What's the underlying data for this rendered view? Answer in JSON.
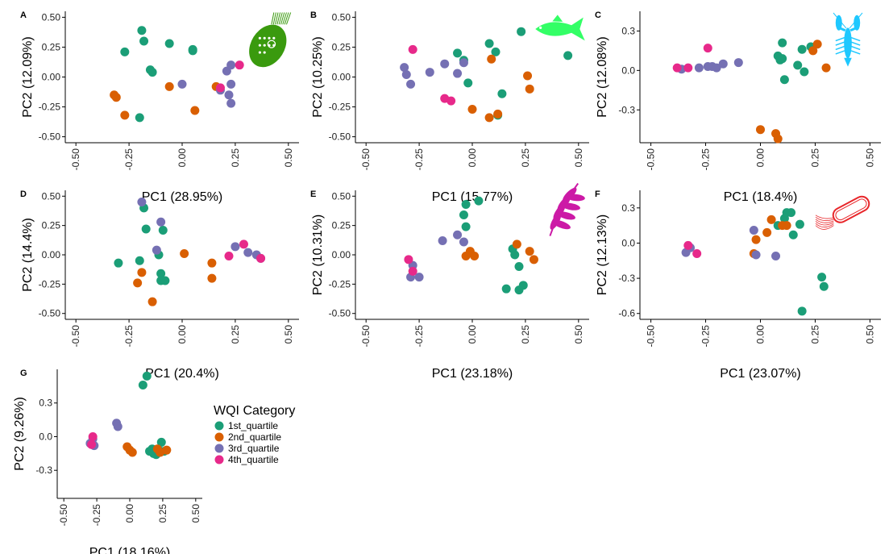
{
  "colors": {
    "1st_quartile": "#1b9e77",
    "2nd_quartile": "#d95f02",
    "3rd_quartile": "#7570b3",
    "4th_quartile": "#e7298a"
  },
  "legend": {
    "title": "WQI Category",
    "items": [
      {
        "key": "1st_quartile",
        "label": "1st_quartile"
      },
      {
        "key": "2nd_quartile",
        "label": "2nd_quartile"
      },
      {
        "key": "3rd_quartile",
        "label": "3rd_quartile"
      },
      {
        "key": "4th_quartile",
        "label": "4th_quartile"
      }
    ]
  },
  "chart_data": [
    {
      "type": "scatter",
      "panel": "A",
      "xlabel": "PC1 (28.95%)",
      "ylabel": "PC2 (12.09%)",
      "xlim": [
        -0.55,
        0.55
      ],
      "ylim": [
        -0.55,
        0.55
      ],
      "xticks": [
        -0.5,
        -0.25,
        0.0,
        0.25,
        0.5
      ],
      "xtick_labels": [
        "-0.50",
        "-0.25",
        "0.00",
        "0.25",
        "0.50"
      ],
      "yticks": [
        -0.5,
        -0.25,
        0.0,
        0.25,
        0.5
      ],
      "ytick_labels": [
        "-0.50",
        "-0.25",
        "0.00",
        "0.25",
        "0.50"
      ],
      "icon": "ciliate-icon",
      "icon_color": "#3a9a0e",
      "series": [
        {
          "name": "1st_quartile",
          "points": [
            [
              -0.27,
              0.21
            ],
            [
              -0.19,
              0.39
            ],
            [
              -0.18,
              0.3
            ],
            [
              -0.15,
              0.06
            ],
            [
              -0.14,
              0.04
            ],
            [
              -0.06,
              0.28
            ],
            [
              0.05,
              0.23
            ],
            [
              0.05,
              0.22
            ],
            [
              -0.2,
              -0.34
            ]
          ]
        },
        {
          "name": "2nd_quartile",
          "points": [
            [
              -0.32,
              -0.15
            ],
            [
              -0.31,
              -0.17
            ],
            [
              -0.27,
              -0.32
            ],
            [
              -0.06,
              -0.08
            ],
            [
              0.06,
              -0.28
            ],
            [
              0.16,
              -0.08
            ]
          ]
        },
        {
          "name": "3rd_quartile",
          "points": [
            [
              0.0,
              -0.06
            ],
            [
              0.21,
              0.05
            ],
            [
              0.23,
              0.1
            ],
            [
              0.23,
              -0.06
            ],
            [
              0.18,
              -0.11
            ],
            [
              0.22,
              -0.15
            ],
            [
              0.23,
              -0.22
            ]
          ]
        },
        {
          "name": "4th_quartile",
          "points": [
            [
              0.18,
              -0.09
            ],
            [
              0.27,
              0.1
            ]
          ]
        }
      ]
    },
    {
      "type": "scatter",
      "panel": "B",
      "xlabel": "PC1 (15.77%)",
      "ylabel": "PC2 (10.25%)",
      "xlim": [
        -0.55,
        0.55
      ],
      "ylim": [
        -0.55,
        0.55
      ],
      "xticks": [
        -0.5,
        -0.25,
        0.0,
        0.25,
        0.5
      ],
      "xtick_labels": [
        "-0.50",
        "-0.25",
        "0.00",
        "0.25",
        "0.50"
      ],
      "yticks": [
        -0.5,
        -0.25,
        0.0,
        0.25,
        0.5
      ],
      "ytick_labels": [
        "-0.50",
        "-0.25",
        "0.00",
        "0.25",
        "0.50"
      ],
      "icon": "fish-icon",
      "icon_color": "#33ff66",
      "series": [
        {
          "name": "1st_quartile",
          "points": [
            [
              -0.07,
              0.2
            ],
            [
              -0.04,
              0.14
            ],
            [
              -0.02,
              -0.05
            ],
            [
              0.08,
              0.28
            ],
            [
              0.11,
              0.21
            ],
            [
              0.23,
              0.38
            ],
            [
              0.14,
              -0.14
            ],
            [
              0.12,
              -0.32
            ],
            [
              0.45,
              0.18
            ]
          ]
        },
        {
          "name": "2nd_quartile",
          "points": [
            [
              0.09,
              0.15
            ],
            [
              0.26,
              0.01
            ],
            [
              0.27,
              -0.1
            ],
            [
              0.0,
              -0.27
            ],
            [
              0.08,
              -0.34
            ],
            [
              0.12,
              -0.31
            ]
          ]
        },
        {
          "name": "3rd_quartile",
          "points": [
            [
              -0.32,
              0.08
            ],
            [
              -0.31,
              0.02
            ],
            [
              -0.29,
              -0.06
            ],
            [
              -0.2,
              0.04
            ],
            [
              -0.13,
              0.11
            ],
            [
              -0.07,
              0.03
            ],
            [
              -0.04,
              0.12
            ]
          ]
        },
        {
          "name": "4th_quartile",
          "points": [
            [
              -0.28,
              0.23
            ],
            [
              -0.13,
              -0.18
            ],
            [
              -0.1,
              -0.2
            ]
          ]
        }
      ]
    },
    {
      "type": "scatter",
      "panel": "C",
      "xlabel": "PC1 (18.4%)",
      "ylabel": "PC2 (12.08%)",
      "xlim": [
        -0.55,
        0.55
      ],
      "ylim": [
        -0.55,
        0.45
      ],
      "xticks": [
        -0.5,
        -0.25,
        0.0,
        0.25,
        0.5
      ],
      "xtick_labels": [
        "-0.50",
        "-0.25",
        "0.00",
        "0.25",
        "0.50"
      ],
      "yticks": [
        -0.3,
        0.0,
        0.3
      ],
      "ytick_labels": [
        "-0.3",
        "0.0",
        "0.3"
      ],
      "icon": "crayfish-icon",
      "icon_color": "#1ec8ff",
      "series": [
        {
          "name": "1st_quartile",
          "points": [
            [
              0.1,
              0.21
            ],
            [
              0.08,
              0.11
            ],
            [
              0.09,
              0.08
            ],
            [
              0.1,
              0.09
            ],
            [
              0.11,
              -0.07
            ],
            [
              0.17,
              0.04
            ],
            [
              0.19,
              0.16
            ],
            [
              0.2,
              -0.01
            ],
            [
              0.23,
              0.18
            ]
          ]
        },
        {
          "name": "2nd_quartile",
          "points": [
            [
              0.0,
              -0.45
            ],
            [
              0.07,
              -0.48
            ],
            [
              0.08,
              -0.52
            ],
            [
              0.24,
              0.15
            ],
            [
              0.26,
              0.2
            ],
            [
              0.3,
              0.02
            ]
          ]
        },
        {
          "name": "3rd_quartile",
          "points": [
            [
              -0.36,
              0.01
            ],
            [
              -0.28,
              0.02
            ],
            [
              -0.24,
              0.03
            ],
            [
              -0.22,
              0.03
            ],
            [
              -0.2,
              0.02
            ],
            [
              -0.17,
              0.05
            ],
            [
              -0.1,
              0.06
            ]
          ]
        },
        {
          "name": "4th_quartile",
          "points": [
            [
              -0.38,
              0.02
            ],
            [
              -0.33,
              0.02
            ],
            [
              -0.24,
              0.17
            ]
          ]
        }
      ]
    },
    {
      "type": "scatter",
      "panel": "D",
      "xlabel": "PC1 (20.4%)",
      "ylabel": "PC2 (14.4%)",
      "xlim": [
        -0.55,
        0.55
      ],
      "ylim": [
        -0.55,
        0.55
      ],
      "xticks": [
        -0.5,
        -0.25,
        0.0,
        0.25,
        0.5
      ],
      "xtick_labels": [
        "-0.50",
        "-0.25",
        "0.00",
        "0.25",
        "0.50"
      ],
      "yticks": [
        -0.5,
        -0.25,
        0.0,
        0.25,
        0.5
      ],
      "ytick_labels": [
        "-0.50",
        "-0.25",
        "0.00",
        "0.25",
        "0.50"
      ],
      "icon": "",
      "icon_color": "",
      "series": [
        {
          "name": "1st_quartile",
          "points": [
            [
              -0.3,
              -0.07
            ],
            [
              -0.18,
              0.4
            ],
            [
              -0.17,
              0.22
            ],
            [
              -0.09,
              0.21
            ],
            [
              -0.11,
              0.0
            ],
            [
              -0.2,
              -0.05
            ],
            [
              -0.1,
              -0.16
            ],
            [
              -0.1,
              -0.22
            ],
            [
              -0.08,
              -0.22
            ]
          ]
        },
        {
          "name": "2nd_quartile",
          "points": [
            [
              -0.21,
              -0.24
            ],
            [
              -0.19,
              -0.15
            ],
            [
              -0.14,
              -0.4
            ],
            [
              0.01,
              0.01
            ],
            [
              0.14,
              -0.07
            ],
            [
              0.14,
              -0.2
            ]
          ]
        },
        {
          "name": "3rd_quartile",
          "points": [
            [
              -0.19,
              0.45
            ],
            [
              -0.12,
              0.04
            ],
            [
              -0.1,
              0.28
            ],
            [
              0.25,
              0.07
            ],
            [
              0.31,
              0.02
            ],
            [
              0.35,
              0.0
            ],
            [
              0.37,
              -0.03
            ]
          ]
        },
        {
          "name": "4th_quartile",
          "points": [
            [
              0.22,
              -0.01
            ],
            [
              0.29,
              0.09
            ],
            [
              0.37,
              -0.03
            ]
          ]
        }
      ]
    },
    {
      "type": "scatter",
      "panel": "E",
      "xlabel": "PC1 (23.18%)",
      "ylabel": "PC2 (10.31%)",
      "xlim": [
        -0.55,
        0.55
      ],
      "ylim": [
        -0.55,
        0.55
      ],
      "xticks": [
        -0.5,
        -0.25,
        0.0,
        0.25,
        0.5
      ],
      "xtick_labels": [
        "-0.50",
        "-0.25",
        "0.00",
        "0.25",
        "0.50"
      ],
      "yticks": [
        -0.5,
        -0.25,
        0.0,
        0.25,
        0.5
      ],
      "ytick_labels": [
        "-0.50",
        "-0.25",
        "0.00",
        "0.25",
        "0.50"
      ],
      "icon": "leaf-icon",
      "icon_color": "#cc1aa6",
      "series": [
        {
          "name": "1st_quartile",
          "points": [
            [
              -0.03,
              0.43
            ],
            [
              0.03,
              0.46
            ],
            [
              -0.04,
              0.34
            ],
            [
              -0.03,
              0.24
            ],
            [
              0.19,
              0.05
            ],
            [
              0.2,
              0.0
            ],
            [
              0.22,
              -0.1
            ],
            [
              0.16,
              -0.29
            ],
            [
              0.22,
              -0.3
            ],
            [
              0.24,
              -0.26
            ]
          ]
        },
        {
          "name": "2nd_quartile",
          "points": [
            [
              -0.03,
              -0.01
            ],
            [
              -0.01,
              0.03
            ],
            [
              0.01,
              -0.01
            ],
            [
              0.21,
              0.09
            ],
            [
              0.27,
              0.03
            ],
            [
              0.29,
              -0.04
            ]
          ]
        },
        {
          "name": "3rd_quartile",
          "points": [
            [
              -0.28,
              -0.09
            ],
            [
              -0.29,
              -0.19
            ],
            [
              -0.25,
              -0.19
            ],
            [
              -0.14,
              0.12
            ],
            [
              -0.07,
              0.17
            ],
            [
              -0.04,
              0.11
            ]
          ]
        },
        {
          "name": "4th_quartile",
          "points": [
            [
              -0.3,
              -0.04
            ],
            [
              -0.28,
              -0.14
            ]
          ]
        }
      ]
    },
    {
      "type": "scatter",
      "panel": "F",
      "xlabel": "PC1 (23.07%)",
      "ylabel": "PC2 (12.13%)",
      "xlim": [
        -0.55,
        0.55
      ],
      "ylim": [
        -0.65,
        0.45
      ],
      "xticks": [
        -0.5,
        -0.25,
        0.0,
        0.25,
        0.5
      ],
      "xtick_labels": [
        "-0.50",
        "-0.25",
        "0.00",
        "0.25",
        "0.50"
      ],
      "yticks": [
        -0.6,
        -0.3,
        0.0,
        0.3
      ],
      "ytick_labels": [
        "-0.6",
        "-0.3",
        "0.0",
        "0.3"
      ],
      "icon": "bacterium-icon",
      "icon_color": "#e8262a",
      "series": [
        {
          "name": "1st_quartile",
          "points": [
            [
              0.08,
              0.15
            ],
            [
              0.11,
              0.21
            ],
            [
              0.12,
              0.26
            ],
            [
              0.14,
              0.26
            ],
            [
              0.15,
              0.07
            ],
            [
              0.18,
              0.16
            ],
            [
              0.28,
              -0.29
            ],
            [
              0.29,
              -0.37
            ],
            [
              0.19,
              -0.58
            ]
          ]
        },
        {
          "name": "2nd_quartile",
          "points": [
            [
              -0.03,
              -0.09
            ],
            [
              -0.02,
              0.03
            ],
            [
              0.03,
              0.09
            ],
            [
              0.05,
              0.2
            ],
            [
              0.1,
              0.15
            ],
            [
              0.12,
              0.15
            ]
          ]
        },
        {
          "name": "3rd_quartile",
          "points": [
            [
              -0.34,
              -0.08
            ],
            [
              -0.32,
              -0.04
            ],
            [
              -0.03,
              0.11
            ],
            [
              -0.02,
              -0.1
            ],
            [
              0.07,
              -0.11
            ]
          ]
        },
        {
          "name": "4th_quartile",
          "points": [
            [
              -0.33,
              -0.02
            ],
            [
              -0.29,
              -0.09
            ]
          ]
        }
      ]
    },
    {
      "type": "scatter",
      "panel": "G",
      "xlabel": "PC1 (18.16%)",
      "ylabel": "PC2 (9.26%)",
      "xlim": [
        -0.55,
        0.55
      ],
      "ylim": [
        -0.55,
        0.6
      ],
      "xticks": [
        -0.5,
        -0.25,
        0.0,
        0.25,
        0.5
      ],
      "xtick_labels": [
        "-0.50",
        "-0.25",
        "0.00",
        "0.25",
        "0.50"
      ],
      "yticks": [
        -0.3,
        0.0,
        0.3
      ],
      "ytick_labels": [
        "-0.3",
        "0.0",
        "0.3"
      ],
      "icon": "",
      "icon_color": "",
      "series": [
        {
          "name": "1st_quartile",
          "points": [
            [
              0.1,
              0.46
            ],
            [
              0.13,
              0.54
            ],
            [
              0.15,
              -0.13
            ],
            [
              0.17,
              -0.11
            ],
            [
              0.18,
              -0.15
            ],
            [
              0.2,
              -0.16
            ],
            [
              0.22,
              -0.12
            ],
            [
              0.24,
              -0.05
            ],
            [
              0.26,
              -0.13
            ]
          ]
        },
        {
          "name": "2nd_quartile",
          "points": [
            [
              -0.02,
              -0.09
            ],
            [
              0.0,
              -0.12
            ],
            [
              0.02,
              -0.14
            ],
            [
              0.21,
              -0.11
            ],
            [
              0.23,
              -0.14
            ],
            [
              0.28,
              -0.12
            ]
          ]
        },
        {
          "name": "3rd_quartile",
          "points": [
            [
              -0.3,
              -0.06
            ],
            [
              -0.28,
              -0.02
            ],
            [
              -0.27,
              -0.08
            ],
            [
              -0.1,
              0.12
            ],
            [
              -0.09,
              0.09
            ]
          ]
        },
        {
          "name": "4th_quartile",
          "points": [
            [
              -0.29,
              -0.07
            ],
            [
              -0.28,
              0.0
            ]
          ]
        }
      ]
    }
  ]
}
